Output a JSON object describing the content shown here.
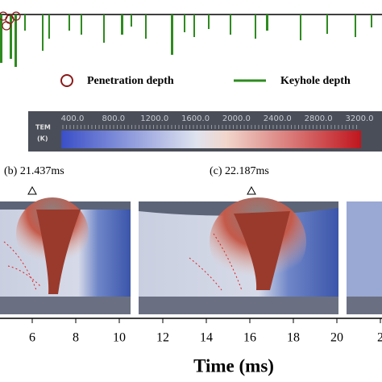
{
  "legend": {
    "items": [
      "Penetration depth",
      "Keyhole depth"
    ]
  },
  "colorbar": {
    "label": [
      "TEM",
      "(K)"
    ],
    "ticks": [
      "400.0",
      "800.0",
      "1200.0",
      "1600.0",
      "2000.0",
      "2400.0",
      "2800.0",
      "3200.0"
    ]
  },
  "panels": [
    {
      "label": "(b) 21.437ms"
    },
    {
      "label": "(c) 22.187ms"
    }
  ],
  "axis": {
    "ticks": [
      "6",
      "8",
      "10",
      "12",
      "14",
      "16",
      "18",
      "20",
      "2"
    ],
    "label": "Time (ms)"
  }
}
